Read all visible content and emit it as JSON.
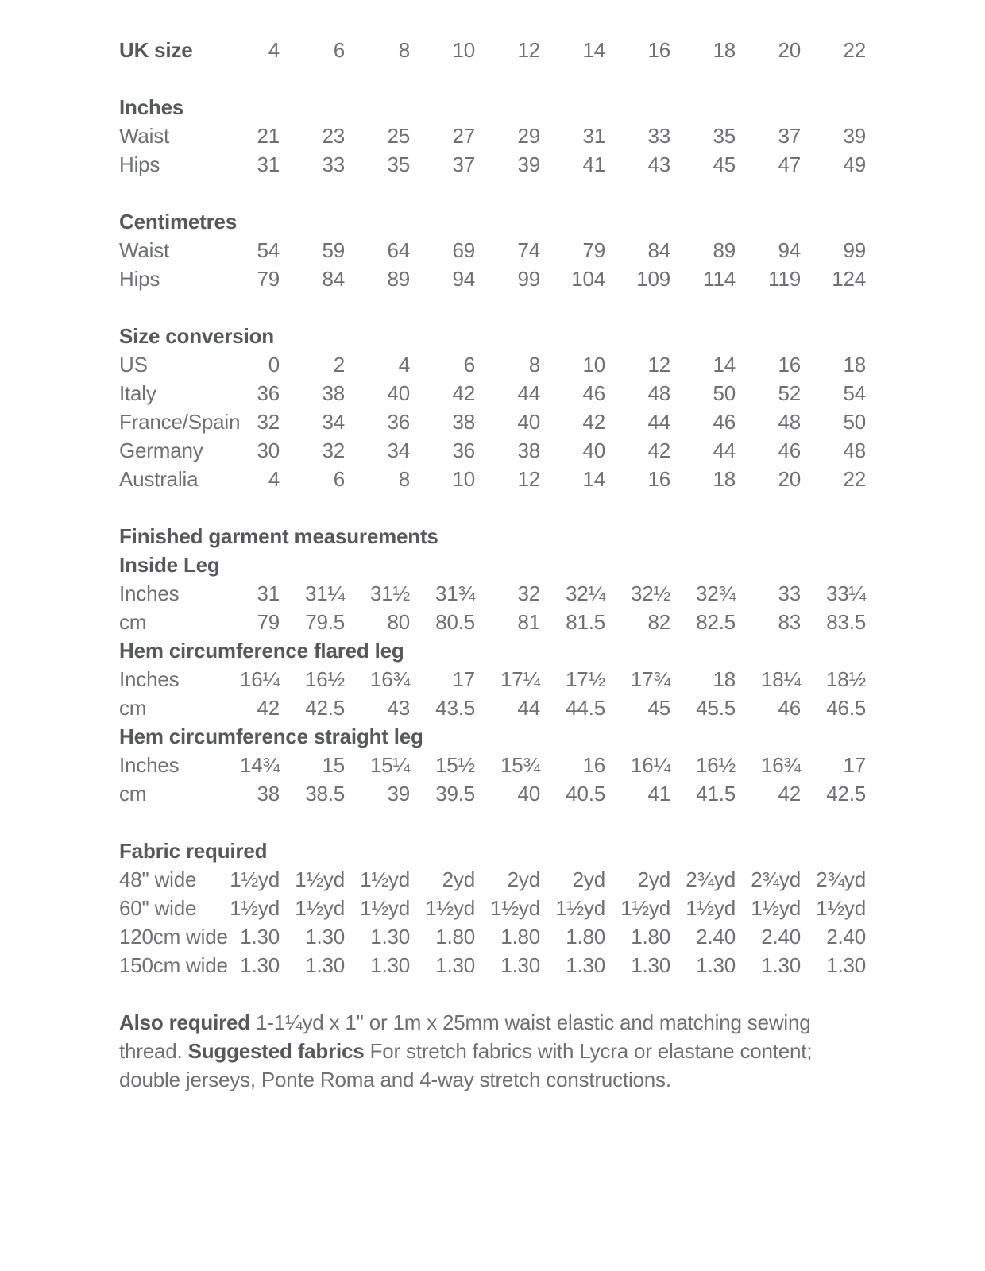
{
  "colors": {
    "heading": "#57585b",
    "body_text": "#6f7073",
    "background": "#ffffff"
  },
  "header_row": {
    "label": "UK size",
    "values": [
      "4",
      "6",
      "8",
      "10",
      "12",
      "14",
      "16",
      "18",
      "20",
      "22"
    ]
  },
  "sections": [
    {
      "title": "Inches",
      "rows": [
        {
          "label": "Waist",
          "values": [
            "21",
            "23",
            "25",
            "27",
            "29",
            "31",
            "33",
            "35",
            "37",
            "39"
          ]
        },
        {
          "label": "Hips",
          "values": [
            "31",
            "33",
            "35",
            "37",
            "39",
            "41",
            "43",
            "45",
            "47",
            "49"
          ]
        }
      ]
    },
    {
      "title": "Centimetres",
      "rows": [
        {
          "label": "Waist",
          "values": [
            "54",
            "59",
            "64",
            "69",
            "74",
            "79",
            "84",
            "89",
            "94",
            "99"
          ]
        },
        {
          "label": "Hips",
          "values": [
            "79",
            "84",
            "89",
            "94",
            "99",
            "104",
            "109",
            "114",
            "119",
            "124"
          ]
        }
      ]
    },
    {
      "title": "Size conversion",
      "rows": [
        {
          "label": "US",
          "values": [
            "0",
            "2",
            "4",
            "6",
            "8",
            "10",
            "12",
            "14",
            "16",
            "18"
          ]
        },
        {
          "label": "Italy",
          "values": [
            "36",
            "38",
            "40",
            "42",
            "44",
            "46",
            "48",
            "50",
            "52",
            "54"
          ]
        },
        {
          "label": "France/Spain",
          "values": [
            "32",
            "34",
            "36",
            "38",
            "40",
            "42",
            "44",
            "46",
            "48",
            "50"
          ]
        },
        {
          "label": "Germany",
          "values": [
            "30",
            "32",
            "34",
            "36",
            "38",
            "40",
            "42",
            "44",
            "46",
            "48"
          ]
        },
        {
          "label": "Australia",
          "values": [
            "4",
            "6",
            "8",
            "10",
            "12",
            "14",
            "16",
            "18",
            "20",
            "22"
          ]
        }
      ]
    },
    {
      "title": "Finished garment measurements",
      "subsections": [
        {
          "subtitle": "Inside Leg",
          "rows": [
            {
              "label": "Inches",
              "values": [
                "31",
                "31¼",
                "31½",
                "31¾",
                "32",
                "32¼",
                "32½",
                "32¾",
                "33",
                "33¼"
              ]
            },
            {
              "label": "cm",
              "values": [
                "79",
                "79.5",
                "80",
                "80.5",
                "81",
                "81.5",
                "82",
                "82.5",
                "83",
                "83.5"
              ]
            }
          ]
        },
        {
          "subtitle": "Hem circumference flared leg",
          "rows": [
            {
              "label": "Inches",
              "values": [
                "16¼",
                "16½",
                "16¾",
                "17",
                "17¼",
                "17½",
                "17¾",
                "18",
                "18¼",
                "18½"
              ]
            },
            {
              "label": "cm",
              "values": [
                "42",
                "42.5",
                "43",
                "43.5",
                "44",
                "44.5",
                "45",
                "45.5",
                "46",
                "46.5"
              ]
            }
          ]
        },
        {
          "subtitle": "Hem circumference straight leg",
          "rows": [
            {
              "label": "Inches",
              "values": [
                "14¾",
                "15",
                "15¼",
                "15½",
                "15¾",
                "16",
                "16¼",
                "16½",
                "16¾",
                "17"
              ]
            },
            {
              "label": "cm",
              "values": [
                "38",
                "38.5",
                "39",
                "39.5",
                "40",
                "40.5",
                "41",
                "41.5",
                "42",
                "42.5"
              ]
            }
          ]
        }
      ]
    },
    {
      "title": "Fabric required",
      "rows": [
        {
          "label": "48\" wide",
          "values": [
            "1½yd",
            "1½yd",
            "1½yd",
            "2yd",
            "2yd",
            "2yd",
            "2yd",
            "2¾yd",
            "2¾yd",
            "2¾yd"
          ]
        },
        {
          "label": "60\" wide",
          "values": [
            "1½yd",
            "1½yd",
            "1½yd",
            "1½yd",
            "1½yd",
            "1½yd",
            "1½yd",
            "1½yd",
            "1½yd",
            "1½yd"
          ]
        },
        {
          "label": "120cm wide",
          "values": [
            "1.30",
            "1.30",
            "1.30",
            "1.80",
            "1.80",
            "1.80",
            "1.80",
            "2.40",
            "2.40",
            "2.40"
          ]
        },
        {
          "label": "150cm wide",
          "values": [
            "1.30",
            "1.30",
            "1.30",
            "1.30",
            "1.30",
            "1.30",
            "1.30",
            "1.30",
            "1.30",
            "1.30"
          ]
        }
      ]
    }
  ],
  "notes": {
    "segments": [
      {
        "text": "Also required",
        "bold": true
      },
      {
        "text": " 1-1¼yd x 1\" or 1m x 25mm waist elastic and matching sewing thread. ",
        "bold": false
      },
      {
        "text": "Suggested fabrics",
        "bold": true
      },
      {
        "text": " For stretch fabrics with Lycra or elastane content; double jerseys, Ponte Roma and 4-way stretch constructions.",
        "bold": false
      }
    ]
  }
}
